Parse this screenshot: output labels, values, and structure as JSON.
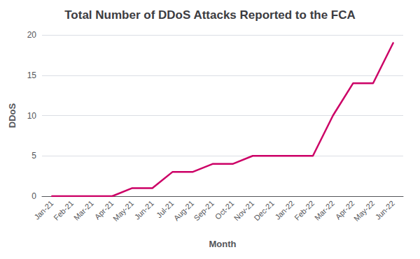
{
  "chart_data": {
    "type": "line",
    "title": "Total Number of DDoS Attacks Reported to the FCA",
    "xlabel": "Month",
    "ylabel": "DDoS",
    "categories": [
      "Jan-21",
      "Feb-21",
      "Mar-21",
      "Apr-21",
      "May-21",
      "Jun-21",
      "Jul-21",
      "Aug-21",
      "Sep-21",
      "Oct-21",
      "Nov-21",
      "Dec-21",
      "Jan-22",
      "Feb-22",
      "Mar-22",
      "Apr-22",
      "May-22",
      "Jun-22"
    ],
    "values": [
      0,
      0,
      0,
      0,
      1,
      1,
      3,
      3,
      4,
      4,
      5,
      5,
      5,
      5,
      10,
      14,
      14,
      19
    ],
    "color": "#cc0066",
    "ylim": [
      0,
      20
    ],
    "yticks": [
      0,
      5,
      10,
      15,
      20
    ],
    "grid": true
  }
}
